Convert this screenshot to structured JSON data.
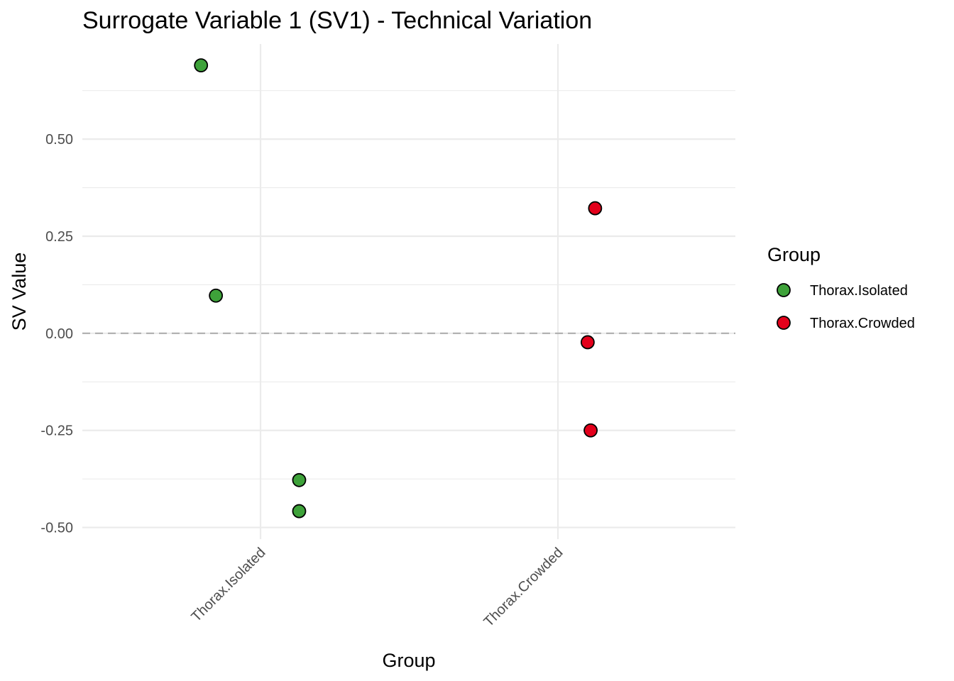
{
  "chart_data": {
    "type": "scatter",
    "title": "Surrogate Variable 1 (SV1) - Technical Variation",
    "xlabel": "Group",
    "ylabel": "SV Value",
    "categories": [
      "Thorax.Isolated",
      "Thorax.Crowded"
    ],
    "ylim": [
      -0.53,
      0.745
    ],
    "yticks": [
      -0.5,
      -0.25,
      0.0,
      0.25,
      0.5
    ],
    "ytick_labels": [
      "-0.50",
      "-0.25",
      "0.00",
      "0.25",
      "0.50"
    ],
    "reference_line": {
      "y": 0,
      "style": "dashed"
    },
    "grid": true,
    "legend": {
      "title": "Group",
      "position": "right"
    },
    "series": [
      {
        "name": "Thorax.Isolated",
        "color": "#3ea23a",
        "points": [
          {
            "category": "Thorax.Isolated",
            "jitter": -0.2,
            "y": 0.69
          },
          {
            "category": "Thorax.Isolated",
            "jitter": -0.15,
            "y": 0.097
          },
          {
            "category": "Thorax.Isolated",
            "jitter": 0.13,
            "y": -0.378
          },
          {
            "category": "Thorax.Isolated",
            "jitter": 0.13,
            "y": -0.458
          }
        ]
      },
      {
        "name": "Thorax.Crowded",
        "color": "#e3001b",
        "points": [
          {
            "category": "Thorax.Crowded",
            "jitter": 0.125,
            "y": 0.322
          },
          {
            "category": "Thorax.Crowded",
            "jitter": 0.1,
            "y": -0.023
          },
          {
            "category": "Thorax.Crowded",
            "jitter": 0.11,
            "y": -0.25
          }
        ]
      }
    ]
  }
}
